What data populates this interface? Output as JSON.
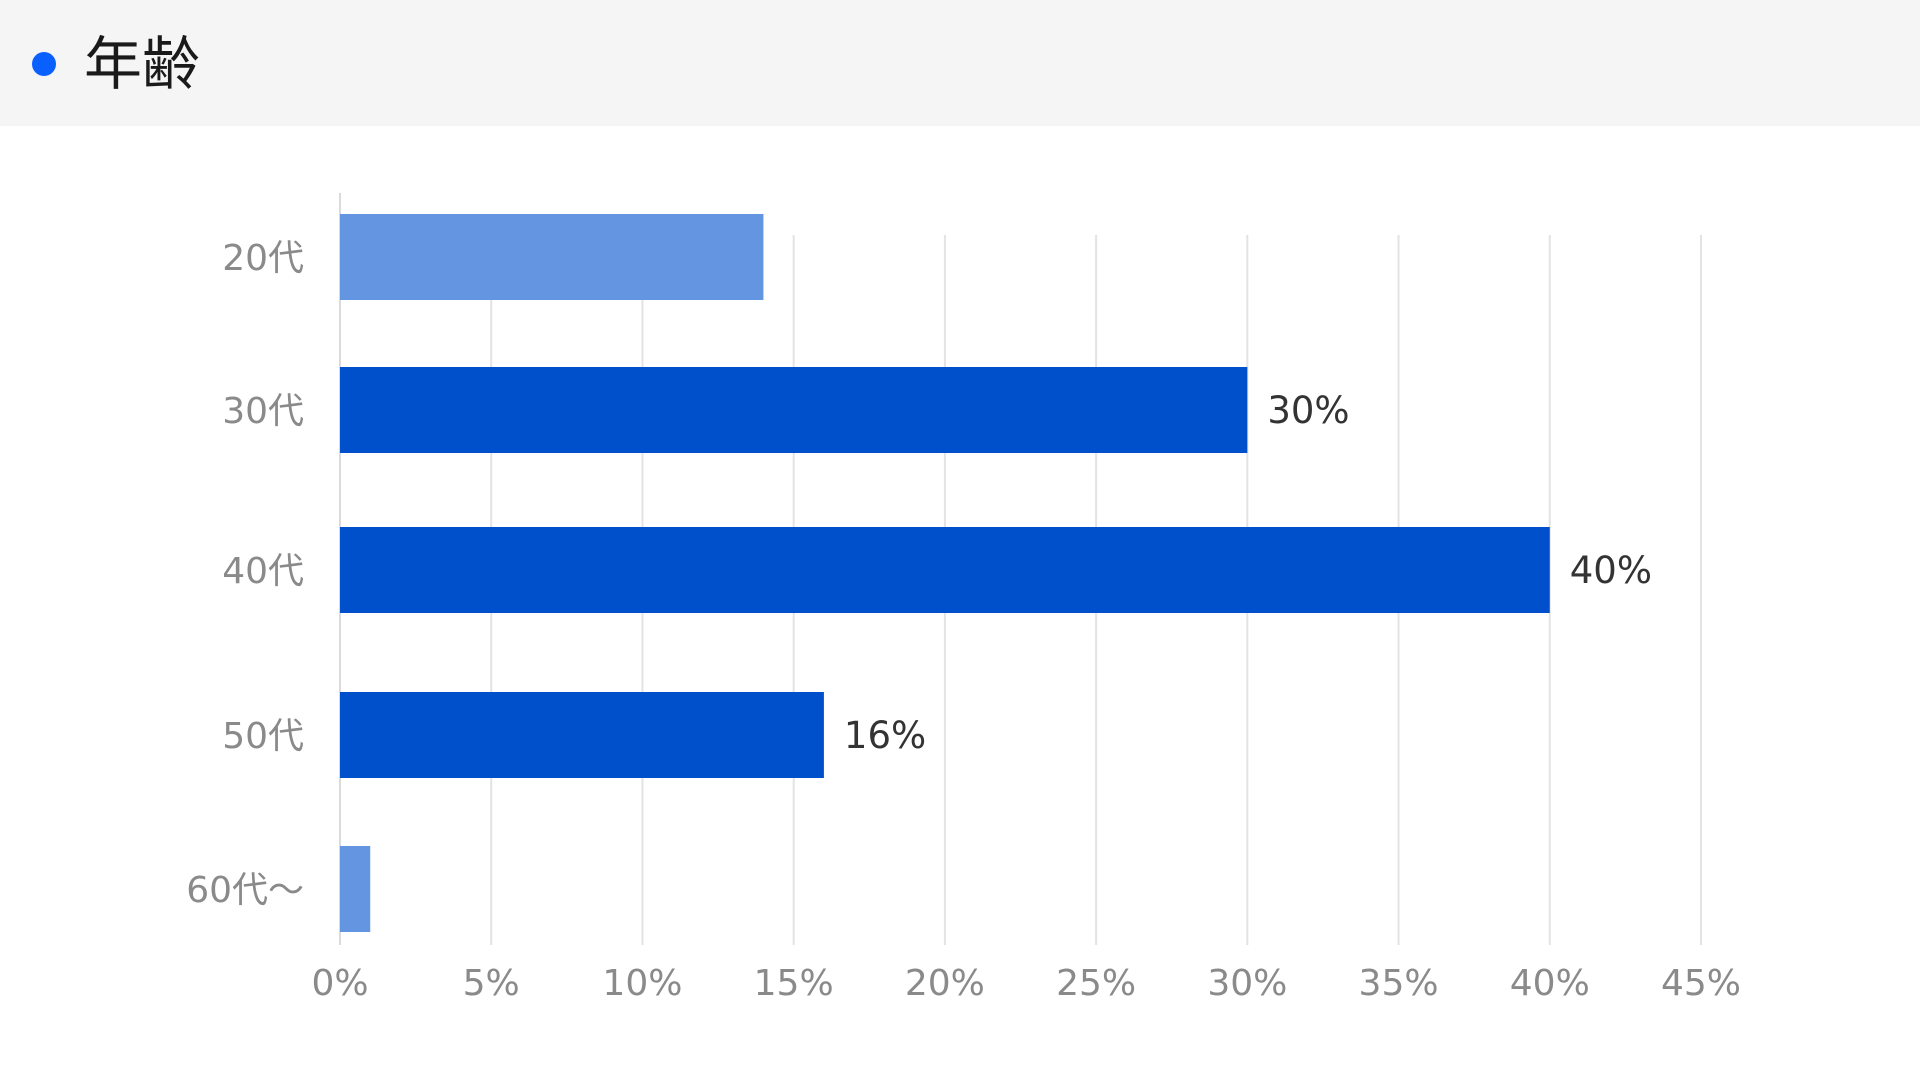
{
  "header": {
    "title": "年齢",
    "dot_color": "#0a5fff"
  },
  "chart_data": {
    "type": "bar",
    "orientation": "horizontal",
    "title": "年齢",
    "categories": [
      "20代",
      "30代",
      "40代",
      "50代",
      "60代〜"
    ],
    "values": [
      14,
      30,
      40,
      16,
      1
    ],
    "data_labels": [
      "",
      "30%",
      "40%",
      "16%",
      ""
    ],
    "bar_colors": [
      "#6495e0",
      "#0050cc",
      "#0050cc",
      "#0050cc",
      "#6495e0"
    ],
    "x_ticks": [
      "0%",
      "5%",
      "10%",
      "15%",
      "20%",
      "25%",
      "30%",
      "35%",
      "40%",
      "45%"
    ],
    "xlim": [
      0,
      45
    ],
    "xlabel": "",
    "ylabel": "",
    "grid": true,
    "legend": "none"
  }
}
